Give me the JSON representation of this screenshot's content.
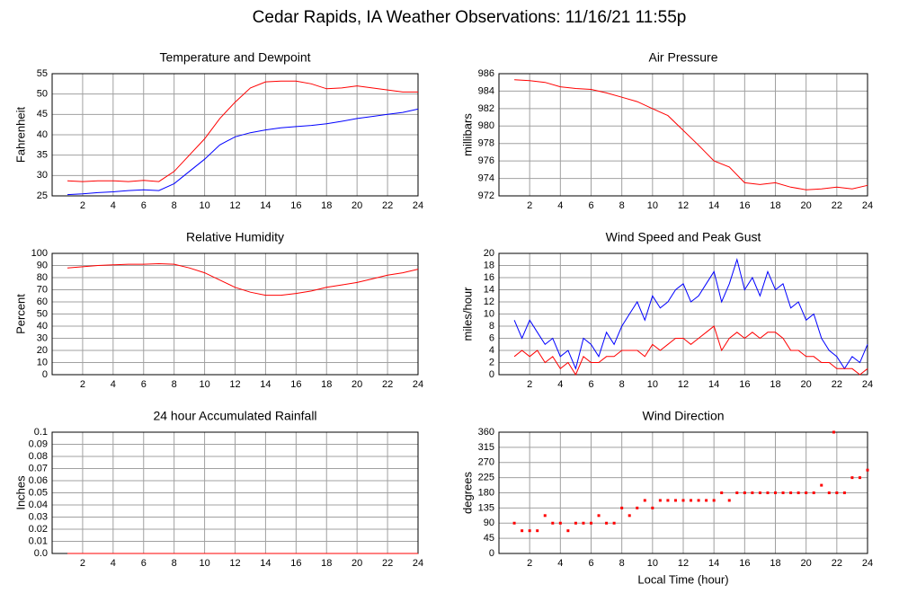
{
  "title": "Cedar Rapids, IA Weather Observations: 11/16/21 11:55p",
  "chart_data": [
    {
      "type": "line",
      "title": "Temperature and Dewpoint",
      "ylabel": "Fahrenheit",
      "grid": true,
      "xlim": [
        0,
        24
      ],
      "xticks": [
        2,
        4,
        6,
        8,
        10,
        12,
        14,
        16,
        18,
        20,
        22,
        24
      ],
      "ylim": [
        25,
        55
      ],
      "yticks": [
        25,
        30,
        35,
        40,
        45,
        50,
        55
      ],
      "x": [
        1,
        2,
        3,
        4,
        5,
        6,
        7,
        8,
        9,
        10,
        11,
        12,
        13,
        14,
        15,
        16,
        17,
        18,
        19,
        20,
        21,
        22,
        23,
        24
      ],
      "series": [
        {
          "color": "#ff0000",
          "values": [
            28.7,
            28.5,
            28.7,
            28.7,
            28.5,
            28.8,
            28.5,
            31,
            35,
            39,
            44,
            48,
            51.5,
            53,
            53.2,
            53.2,
            52.5,
            51.3,
            51.5,
            52,
            51.5,
            51,
            50.5,
            50.5
          ]
        },
        {
          "color": "#0000ff",
          "values": [
            25.3,
            25.5,
            25.8,
            26,
            26.3,
            26.5,
            26.3,
            28,
            31,
            34,
            37.5,
            39.5,
            40.5,
            41.2,
            41.7,
            42,
            42.3,
            42.7,
            43.3,
            44,
            44.5,
            45,
            45.5,
            46.3
          ]
        }
      ]
    },
    {
      "type": "line",
      "title": "Air Pressure",
      "ylabel": "millibars",
      "grid": true,
      "xlim": [
        0,
        24
      ],
      "xticks": [
        2,
        4,
        6,
        8,
        10,
        12,
        14,
        16,
        18,
        20,
        22,
        24
      ],
      "ylim": [
        972,
        986
      ],
      "yticks": [
        972,
        974,
        976,
        978,
        980,
        982,
        984,
        986
      ],
      "x": [
        1,
        2,
        3,
        4,
        5,
        6,
        7,
        8,
        9,
        10,
        11,
        12,
        13,
        14,
        15,
        16,
        17,
        18,
        19,
        20,
        21,
        22,
        23,
        24
      ],
      "series": [
        {
          "color": "#ff0000",
          "values": [
            985.3,
            985.2,
            985,
            984.5,
            984.3,
            984.2,
            983.8,
            983.3,
            982.8,
            982,
            981.2,
            979.5,
            977.8,
            976,
            975.3,
            973.5,
            973.3,
            973.5,
            973,
            972.7,
            972.8,
            973,
            972.8,
            973.2
          ]
        }
      ]
    },
    {
      "type": "line",
      "title": "Relative Humidity",
      "ylabel": "Percent",
      "grid": true,
      "xlim": [
        0,
        24
      ],
      "xticks": [
        2,
        4,
        6,
        8,
        10,
        12,
        14,
        16,
        18,
        20,
        22,
        24
      ],
      "ylim": [
        0,
        100
      ],
      "yticks": [
        0,
        10,
        20,
        30,
        40,
        50,
        60,
        70,
        80,
        90,
        100
      ],
      "x": [
        1,
        2,
        3,
        4,
        5,
        6,
        7,
        8,
        9,
        10,
        11,
        12,
        13,
        14,
        15,
        16,
        17,
        18,
        19,
        20,
        21,
        22,
        23,
        24
      ],
      "series": [
        {
          "color": "#ff0000",
          "values": [
            88,
            89,
            90,
            90.5,
            91,
            91,
            91.5,
            91,
            88,
            84,
            78,
            72,
            68,
            65.5,
            65.5,
            67,
            69,
            72,
            74,
            76,
            79,
            82,
            84,
            87
          ]
        }
      ]
    },
    {
      "type": "line",
      "title": "Wind Speed and Peak Gust",
      "ylabel": "miles/hour",
      "grid": true,
      "xlim": [
        0,
        24
      ],
      "xticks": [
        2,
        4,
        6,
        8,
        10,
        12,
        14,
        16,
        18,
        20,
        22,
        24
      ],
      "ylim": [
        0,
        20
      ],
      "yticks": [
        0,
        2,
        4,
        6,
        8,
        10,
        12,
        14,
        16,
        18,
        20
      ],
      "x": [
        1,
        1.5,
        2,
        2.5,
        3,
        3.5,
        4,
        4.5,
        5,
        5.5,
        6,
        6.5,
        7,
        7.5,
        8,
        8.5,
        9,
        9.5,
        10,
        10.5,
        11,
        11.5,
        12,
        12.5,
        13,
        13.5,
        14,
        14.5,
        15,
        15.5,
        16,
        16.5,
        17,
        17.5,
        18,
        18.5,
        19,
        19.5,
        20,
        20.5,
        21,
        21.5,
        22,
        22.5,
        23,
        23.5,
        24
      ],
      "series": [
        {
          "color": "#0000ff",
          "values": [
            9,
            6,
            9,
            7,
            5,
            6,
            3,
            4,
            1,
            6,
            5,
            3,
            7,
            5,
            8,
            10,
            12,
            9,
            13,
            11,
            12,
            14,
            15,
            12,
            13,
            15,
            17,
            12,
            15,
            19,
            14,
            16,
            13,
            17,
            14,
            15,
            11,
            12,
            9,
            10,
            6,
            4,
            3,
            1,
            3,
            2,
            5
          ]
        },
        {
          "color": "#ff0000",
          "values": [
            3,
            4,
            3,
            4,
            2,
            3,
            1,
            2,
            0,
            3,
            2,
            2,
            3,
            3,
            4,
            4,
            4,
            3,
            5,
            4,
            5,
            6,
            6,
            5,
            6,
            7,
            8,
            4,
            6,
            7,
            6,
            7,
            6,
            7,
            7,
            6,
            4,
            4,
            3,
            3,
            2,
            2,
            1,
            1,
            1,
            0,
            1
          ]
        }
      ]
    },
    {
      "type": "line",
      "title": "24 hour Accumulated Rainfall",
      "ylabel": "Inches",
      "grid": true,
      "xlim": [
        0,
        24
      ],
      "xticks": [
        2,
        4,
        6,
        8,
        10,
        12,
        14,
        16,
        18,
        20,
        22,
        24
      ],
      "ylim": [
        0,
        0.1
      ],
      "yticks": [
        {
          "value": 0,
          "label": "0.0"
        },
        0.01,
        0.02,
        0.03,
        0.04,
        0.05,
        0.06,
        0.07,
        0.08,
        0.09,
        0.1
      ],
      "x": [
        1,
        24
      ],
      "series": [
        {
          "color": "#ff0000",
          "values": [
            0,
            0
          ]
        }
      ]
    },
    {
      "type": "scatter",
      "title": "Wind Direction",
      "ylabel": "degrees",
      "xlabel": "Local Time (hour)",
      "grid": true,
      "xlim": [
        0,
        24
      ],
      "xticks": [
        2,
        4,
        6,
        8,
        10,
        12,
        14,
        16,
        18,
        20,
        22,
        24
      ],
      "ylim": [
        0,
        360
      ],
      "yticks": [
        0,
        45,
        90,
        135,
        180,
        225,
        270,
        315,
        360
      ],
      "x": [
        1,
        1.5,
        2,
        2.5,
        3,
        3.5,
        4,
        4.5,
        5,
        5.5,
        6,
        6.5,
        7,
        7.5,
        8,
        8.5,
        9,
        9.5,
        10,
        10.5,
        11,
        11.5,
        12,
        12.5,
        13,
        13.5,
        14,
        14.5,
        15,
        15.5,
        16,
        16.5,
        17,
        17.5,
        18,
        18.5,
        19,
        19.5,
        20,
        20.5,
        21,
        21.5,
        21.8,
        22,
        22.5,
        23,
        23.5,
        24
      ],
      "series": [
        {
          "color": "#ff0000",
          "values": [
            90,
            67.5,
            67.5,
            67.5,
            112.5,
            90,
            90,
            67.5,
            90,
            90,
            90,
            112.5,
            90,
            90,
            135,
            112.5,
            135,
            157.5,
            135,
            157.5,
            157.5,
            157.5,
            157.5,
            157.5,
            157.5,
            157.5,
            157.5,
            180,
            157.5,
            180,
            180,
            180,
            180,
            180,
            180,
            180,
            180,
            180,
            180,
            180,
            202.5,
            180,
            360,
            180,
            180,
            225,
            225,
            247.5
          ]
        }
      ]
    }
  ]
}
